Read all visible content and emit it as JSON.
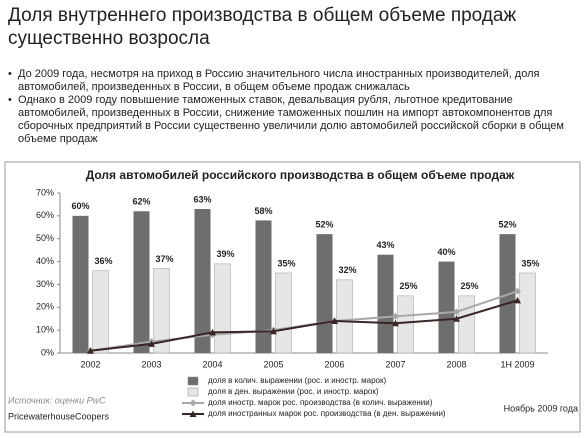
{
  "title": "Доля внутреннего производства в общем объеме продаж существенно возросла",
  "bullets": [
    "До 2009 года, несмотря на приход в Россию значительного числа иностранных производителей, доля автомобилей, произведенных  в России, в общем объеме продаж снижалась",
    "Однако в 2009 году повышение таможенных ставок, девальвация рубля, льготное кредитование автомобилей, произведенных в России, снижение таможенных пошлин на импорт автокомпонентов для сборочных предприятий в России существенно увеличили долю автомобилей российской сборки в общем объеме продаж"
  ],
  "source": "Источник: оценки PwC",
  "company": "PricewaterhouseCoopers",
  "date": "Ноябрь 2009 года",
  "chart_data": {
    "type": "bar",
    "title": "Доля автомобилей российского производства в общем объеме продаж",
    "categories": [
      "2002",
      "2003",
      "2004",
      "2005",
      "2006",
      "2007",
      "2008",
      "1H 2009"
    ],
    "series": [
      {
        "name": "доля в колич. выражении (рос. и иностр. марок)",
        "kind": "bar",
        "color": "#6e6e6e",
        "values": [
          60,
          62,
          63,
          58,
          52,
          43,
          40,
          52
        ],
        "value_labels": [
          "60%",
          "62%",
          "63%",
          "58%",
          "52%",
          "43%",
          "40%",
          "52%"
        ]
      },
      {
        "name": "доля в ден. выражении (рос. и иностр. марок)",
        "kind": "bar",
        "color": "#e6e6e6",
        "values": [
          36,
          37,
          39,
          35,
          32,
          25,
          25,
          35
        ],
        "value_labels": [
          "36%",
          "37%",
          "39%",
          "35%",
          "32%",
          "25%",
          "25%",
          "35%"
        ]
      },
      {
        "name": "доля иностр. марок рос. производства (в колич. выражении)",
        "kind": "line",
        "marker": "diamond",
        "color": "#a9a9a9",
        "values": [
          1,
          5,
          8,
          10,
          14,
          16,
          18,
          27
        ]
      },
      {
        "name": "доля иностранных марок рос. производства (в ден. выражении)",
        "kind": "line",
        "marker": "triangle",
        "color": "#3b2626",
        "values": [
          1,
          4,
          9,
          9.5,
          14,
          13,
          15,
          23
        ]
      }
    ],
    "ylim": [
      0,
      70
    ],
    "yticks": [
      {
        "value": 0,
        "label": "0%"
      },
      {
        "value": 10,
        "label": "10%"
      },
      {
        "value": 20,
        "label": "20%"
      },
      {
        "value": 30,
        "label": "30%"
      },
      {
        "value": 40,
        "label": "40%"
      },
      {
        "value": 50,
        "label": "50%"
      },
      {
        "value": 60,
        "label": "60%"
      },
      {
        "value": 70,
        "label": "70%"
      }
    ],
    "grid": false
  }
}
